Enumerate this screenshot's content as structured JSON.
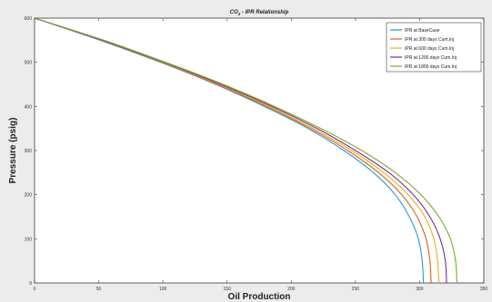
{
  "chart_data": {
    "type": "line",
    "title": "CO2 - IPR Relationship",
    "title_main": "CO",
    "title_sub": "2",
    "title_rest": " - IPR Relationship",
    "xlabel": "Oil Production",
    "ylabel": "Pressure (psig)",
    "xlim": [
      0,
      350
    ],
    "ylim": [
      0,
      600
    ],
    "xticks": [
      "0",
      "50",
      "100",
      "150",
      "200",
      "250",
      "300",
      "350"
    ],
    "yticks": [
      "0",
      "100",
      "200",
      "300",
      "400",
      "500",
      "600"
    ],
    "grid": false,
    "legend_position": "top-right",
    "pressure_points": [
      600,
      550,
      500,
      450,
      400,
      350,
      300,
      250,
      200,
      150,
      100,
      50,
      0
    ],
    "series": [
      {
        "name": "IPR at BaseCase",
        "color": "#1f9bd7",
        "x": [
          0,
          51,
          98,
          141,
          179,
          213,
          241,
          264,
          281,
          292,
          299,
          302,
          303
        ]
      },
      {
        "name": "IPR at 300 days Cum.Inj",
        "color": "#d9621f",
        "x": [
          0,
          52,
          99,
          142,
          181,
          215,
          244,
          268,
          286,
          298,
          305,
          308,
          309
        ]
      },
      {
        "name": "IPR at 600 days Cum.Inj",
        "color": "#e8b01e",
        "x": [
          0,
          53,
          100,
          144,
          183,
          217,
          247,
          272,
          291,
          304,
          311,
          314,
          315
        ]
      },
      {
        "name": "IPR at 1200 days Cum.Inj",
        "color": "#7b2d8e",
        "x": [
          0,
          53,
          101,
          145,
          185,
          220,
          250,
          276,
          295,
          308,
          316,
          320,
          321
        ]
      },
      {
        "name": "IPR at 1800 days Cum.Inj",
        "color": "#77ac30",
        "x": [
          0,
          54,
          102,
          147,
          187,
          223,
          255,
          281,
          301,
          315,
          324,
          328,
          329
        ]
      }
    ]
  }
}
